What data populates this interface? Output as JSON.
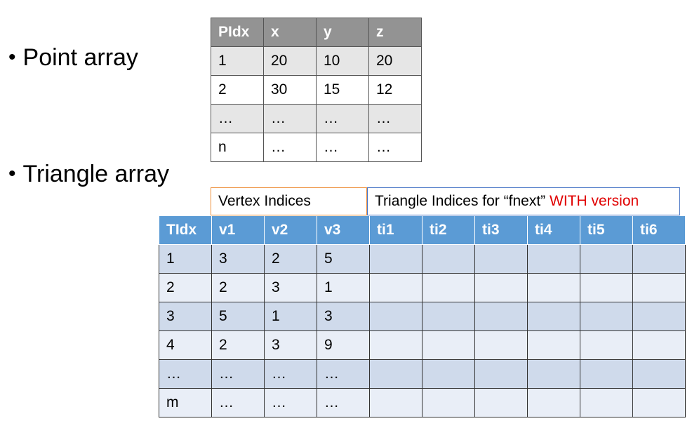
{
  "bullets": {
    "point_array": "Point array",
    "triangle_array": "Triangle array",
    "dot": "•"
  },
  "point_table": {
    "headers": [
      "PIdx",
      "x",
      "y",
      "z"
    ],
    "rows": [
      [
        "1",
        "20",
        "10",
        "20"
      ],
      [
        "2",
        "30",
        "15",
        "12"
      ],
      [
        "…",
        "…",
        "…",
        "…"
      ],
      [
        "n",
        "…",
        "…",
        "…"
      ]
    ]
  },
  "triangle_groups": {
    "vertex_label": "Vertex Indices",
    "triangle_label_prefix": "Triangle Indices for “fnext” ",
    "triangle_label_highlight": "WITH version",
    "highlight_color": "#e00000"
  },
  "triangle_table": {
    "headers": [
      "TIdx",
      "v1",
      "v2",
      "v3",
      "ti1",
      "ti2",
      "ti3",
      "ti4",
      "ti5",
      "ti6"
    ],
    "rows": [
      [
        "1",
        "3",
        "2",
        "5",
        "",
        "",
        "",
        "",
        "",
        ""
      ],
      [
        "2",
        "2",
        "3",
        "1",
        "",
        "",
        "",
        "",
        "",
        ""
      ],
      [
        "3",
        "5",
        "1",
        "3",
        "",
        "",
        "",
        "",
        "",
        ""
      ],
      [
        "4",
        "2",
        "3",
        "9",
        "",
        "",
        "",
        "",
        "",
        ""
      ],
      [
        "…",
        "…",
        "…",
        "…",
        "",
        "",
        "",
        "",
        "",
        ""
      ],
      [
        "m",
        "…",
        "…",
        "…",
        "",
        "",
        "",
        "",
        "",
        ""
      ]
    ]
  },
  "colors": {
    "point_header": "#939393",
    "triangle_header": "#5b9bd5",
    "vertex_group_border": "#ed8f3a",
    "triangle_group_border": "#4472c4"
  }
}
